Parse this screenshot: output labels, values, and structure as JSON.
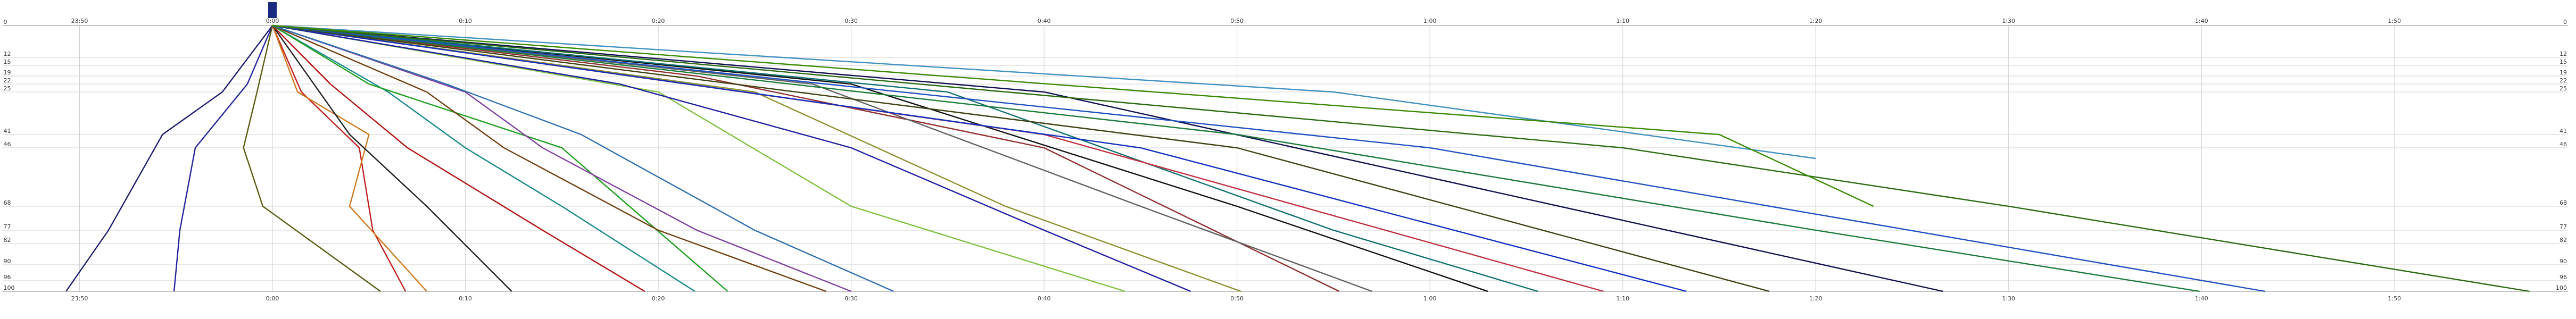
{
  "chart_data": {
    "type": "line",
    "xlim": [
      -14,
      119
    ],
    "xticks": [
      {
        "value": -10,
        "label": "23:50"
      },
      {
        "value": 0,
        "label": "0:00"
      },
      {
        "value": 10,
        "label": "0:10"
      },
      {
        "value": 20,
        "label": "0:20"
      },
      {
        "value": 30,
        "label": "0:30"
      },
      {
        "value": 40,
        "label": "0:40"
      },
      {
        "value": 50,
        "label": "0:50"
      },
      {
        "value": 60,
        "label": "1:00"
      },
      {
        "value": 70,
        "label": "1:10"
      },
      {
        "value": 80,
        "label": "1:20"
      },
      {
        "value": 90,
        "label": "1:30"
      },
      {
        "value": 100,
        "label": "1:40"
      },
      {
        "value": 110,
        "label": "1:50"
      }
    ],
    "ylim": [
      0,
      100
    ],
    "y_direction": "down",
    "yticks": [
      0,
      12,
      15,
      19,
      22,
      25,
      41,
      46,
      68,
      77,
      82,
      90,
      96,
      100
    ],
    "grid": true,
    "series": [
      {
        "color": "#1c1c6e",
        "x": [
          0,
          -2.6,
          -5.7,
          -8.5,
          -10.7
        ],
        "values": [
          0,
          25,
          41,
          77,
          100
        ]
      },
      {
        "color": "#22229a",
        "x": [
          0,
          -1.3,
          -4,
          -4.8,
          -5.1
        ],
        "values": [
          0,
          22,
          46,
          77,
          100
        ]
      },
      {
        "color": "#5a5a10",
        "x": [
          0,
          -0.8,
          -1.5,
          -0.5,
          5.6
        ],
        "values": [
          0,
          25,
          46,
          68,
          100
        ]
      },
      {
        "color": "#c02020",
        "x": [
          0,
          1.5,
          4.5,
          5.2,
          6.9
        ],
        "values": [
          0,
          25,
          46,
          77,
          100
        ]
      },
      {
        "color": "#d07a20",
        "x": [
          0,
          1.3,
          5,
          4,
          8
        ],
        "values": [
          0,
          25,
          41,
          68,
          100
        ]
      },
      {
        "color": "#202020",
        "x": [
          0,
          4,
          8,
          12.4
        ],
        "values": [
          0,
          41,
          68,
          100
        ]
      },
      {
        "color": "#b01010",
        "x": [
          0,
          3,
          7,
          14,
          19.3
        ],
        "values": [
          0,
          22,
          46,
          77,
          100
        ]
      },
      {
        "color": "#1a8a8a",
        "x": [
          0,
          6,
          10,
          15,
          21.9
        ],
        "values": [
          0,
          25,
          46,
          68,
          100
        ]
      },
      {
        "color": "#20a020",
        "x": [
          0,
          5,
          15,
          23.6
        ],
        "values": [
          0,
          22,
          46,
          100
        ]
      },
      {
        "color": "#704010",
        "x": [
          0,
          8,
          12,
          20,
          28.7
        ],
        "values": [
          0,
          25,
          46,
          77,
          100
        ]
      },
      {
        "color": "#8040a0",
        "x": [
          0,
          10,
          14,
          22,
          30
        ],
        "values": [
          0,
          25,
          46,
          77,
          100
        ]
      },
      {
        "color": "#3070b0",
        "x": [
          0,
          9,
          16,
          25,
          32.2
        ],
        "values": [
          0,
          22,
          41,
          77,
          100
        ]
      },
      {
        "color": "#80c040",
        "x": [
          0,
          20,
          30,
          44.2
        ],
        "values": [
          0,
          25,
          68,
          100
        ]
      },
      {
        "color": "#2020a0",
        "x": [
          0,
          18,
          30,
          40,
          47.6
        ],
        "values": [
          0,
          22,
          46,
          77,
          100
        ]
      },
      {
        "color": "#909030",
        "x": [
          0,
          25,
          38,
          50.2
        ],
        "values": [
          0,
          25,
          68,
          100
        ]
      },
      {
        "color": "#903030",
        "x": [
          0,
          22,
          40,
          55.3
        ],
        "values": [
          0,
          19,
          46,
          100
        ]
      },
      {
        "color": "#606060",
        "x": [
          0,
          28,
          45,
          57
        ],
        "values": [
          0,
          22,
          68,
          100
        ]
      },
      {
        "color": "#101010",
        "x": [
          0,
          30,
          50,
          63
        ],
        "values": [
          0,
          22,
          68,
          100
        ]
      },
      {
        "color": "#107070",
        "x": [
          0,
          35,
          55,
          65.6
        ],
        "values": [
          0,
          25,
          77,
          100
        ]
      },
      {
        "color": "#c03040",
        "x": [
          0,
          40,
          69
        ],
        "values": [
          0,
          41,
          100
        ]
      },
      {
        "color": "#1030c0",
        "x": [
          0,
          45,
          73.3
        ],
        "values": [
          0,
          46,
          100
        ]
      },
      {
        "color": "#404010",
        "x": [
          0,
          50,
          77.6
        ],
        "values": [
          0,
          46,
          100
        ]
      },
      {
        "color": "#101050",
        "x": [
          0,
          40,
          86.6
        ],
        "values": [
          0,
          25,
          100
        ]
      },
      {
        "color": "#1a7a3a",
        "x": [
          0,
          50,
          80,
          99.9
        ],
        "values": [
          0,
          41,
          77,
          100
        ]
      },
      {
        "color": "#2050c0",
        "x": [
          0,
          60,
          103.3
        ],
        "values": [
          0,
          46,
          100
        ]
      },
      {
        "color": "#2a6a10",
        "x": [
          0,
          70,
          90,
          117
        ],
        "values": [
          0,
          46,
          68,
          100
        ]
      },
      {
        "color": "#4090c0",
        "x": [
          0,
          55,
          80
        ],
        "values": [
          0,
          25,
          50
        ]
      },
      {
        "color": "#3a8a00",
        "x": [
          0,
          75,
          83
        ],
        "values": [
          0,
          41,
          68
        ]
      }
    ]
  }
}
